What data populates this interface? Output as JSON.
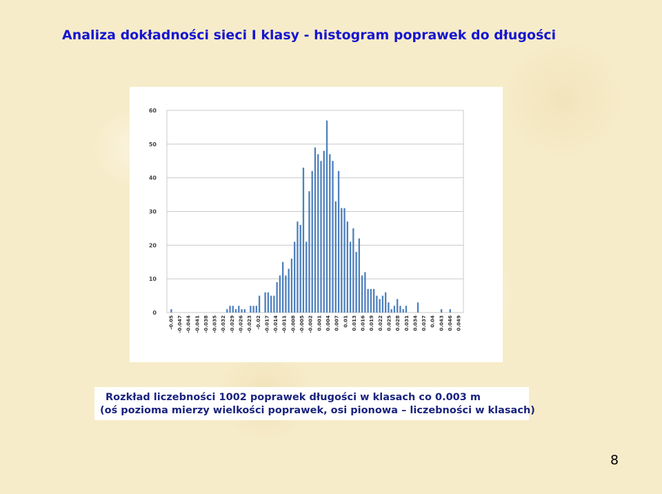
{
  "slide": {
    "title": "Analiza dokładności sieci I klasy  - histogram poprawek do długości",
    "caption_line1": "Rozkład liczebności 1002 poprawek długości w klasach co 0.003 m",
    "caption_line2": "(oś pozioma mierzy wielkości poprawek, osi pionowa – liczebności w klasach)",
    "page_number": "8",
    "colors": {
      "title": "#1515d0",
      "caption": "#1a237e",
      "bars": "#4f81bd",
      "background": "#f7ecc9"
    }
  },
  "chart_data": {
    "type": "bar",
    "title": "",
    "xlabel": "",
    "ylabel": "",
    "ylim": [
      0,
      60
    ],
    "yticks": [
      0,
      10,
      20,
      30,
      40,
      50,
      60
    ],
    "grid": true,
    "legend": "none",
    "tick_labels": [
      "-0.05",
      "-0.047",
      "-0.044",
      "-0.041",
      "-0.038",
      "-0.035",
      "-0.032",
      "-0.029",
      "-0.026",
      "-0.023",
      "-0.02",
      "-0.017",
      "-0.014",
      "-0.011",
      "-0.008",
      "-0.005",
      "-0.002",
      "0.001",
      "0.004",
      "0.007",
      "0.01",
      "0.013",
      "0.016",
      "0.019",
      "0.022",
      "0.025",
      "0.028",
      "0.031",
      "0.034",
      "0.037",
      "0.04",
      "0.043",
      "0.046",
      "0.049"
    ],
    "values": [
      0,
      1,
      0,
      0,
      0,
      0,
      0,
      0,
      0,
      0,
      0,
      0,
      0,
      0,
      0,
      0,
      0,
      0,
      0,
      0,
      1,
      2,
      2,
      1,
      2,
      1,
      1,
      0,
      2,
      2,
      2,
      5,
      0,
      6,
      6,
      5,
      5,
      9,
      11,
      15,
      11,
      13,
      16,
      21,
      27,
      26,
      43,
      21,
      36,
      42,
      49,
      47,
      45,
      48,
      57,
      47,
      45,
      33,
      42,
      31,
      31,
      27,
      21,
      25,
      18,
      22,
      11,
      12,
      7,
      7,
      7,
      5,
      4,
      5,
      6,
      3,
      1,
      2,
      4,
      2,
      1,
      2,
      0,
      0,
      0,
      3,
      0,
      0,
      0,
      0,
      0,
      0,
      0,
      1,
      0,
      0,
      1,
      0,
      0,
      0,
      0
    ]
  }
}
